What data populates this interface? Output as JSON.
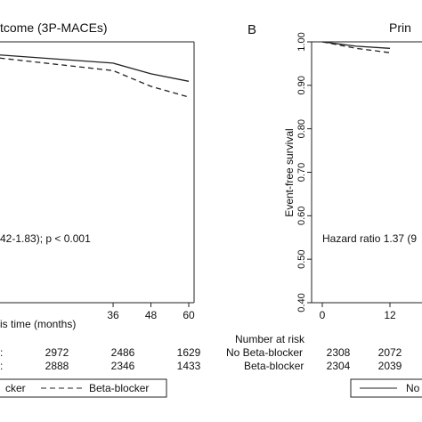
{
  "panelA": {
    "title": "tcome (3P-MACEs)",
    "xlabel": "is time (months)",
    "annotation": "42-1.83); p < 0.001",
    "risk_rows": [
      {
        "label": ":",
        "values": [
          "2972",
          "2486",
          "1629"
        ]
      },
      {
        "label": ":",
        "values": [
          "2888",
          "2346",
          "1433"
        ]
      }
    ],
    "legend": {
      "partial_label": "cker",
      "dashed_label": "Beta-blocker"
    }
  },
  "panelB": {
    "letter": "B",
    "title": "Prin",
    "ylabel": "Event-free survival",
    "annotation": "Hazard ratio 1.37 (9",
    "risk_header": "Number at risk",
    "risk_rows": [
      {
        "label": "No Beta-blocker",
        "values": [
          "2308",
          "2072"
        ]
      },
      {
        "label": "Beta-blocker",
        "values": [
          "2304",
          "2039"
        ]
      }
    ],
    "legend": {
      "solid_label": "No"
    }
  },
  "chart_data": [
    {
      "type": "line",
      "title": "tcome (3P-MACEs)",
      "xlabel": "is time (months)",
      "x_ticks": [
        36,
        48,
        60
      ],
      "xlim": [
        0,
        60
      ],
      "ylim": [
        0.0,
        1.0
      ],
      "series": [
        {
          "name": "",
          "style": "solid",
          "x": [
            0,
            36,
            48,
            60
          ],
          "y": [
            0.975,
            0.962,
            0.945,
            0.933
          ]
        },
        {
          "name": "Beta-blocker",
          "style": "dashed",
          "x": [
            0,
            36,
            48,
            60
          ],
          "y": [
            0.97,
            0.95,
            0.925,
            0.908
          ]
        }
      ],
      "annotation": "42-1.83); p < 0.001"
    },
    {
      "type": "line",
      "title": "Prin",
      "ylabel": "Event-free survival",
      "x_ticks": [
        0,
        12
      ],
      "y_ticks": [
        1.0,
        0.9,
        0.8,
        0.7,
        0.6,
        0.5,
        0.4
      ],
      "xlim": [
        0,
        12
      ],
      "ylim": [
        0.4,
        1.0
      ],
      "series": [
        {
          "name": "No Beta-blocker",
          "style": "solid",
          "x": [
            0,
            6,
            12
          ],
          "y": [
            1.0,
            0.99,
            0.985
          ]
        },
        {
          "name": "Beta-blocker",
          "style": "dashed",
          "x": [
            0,
            6,
            12
          ],
          "y": [
            1.0,
            0.985,
            0.975
          ]
        }
      ],
      "annotation": "Hazard ratio 1.37 (9"
    }
  ]
}
